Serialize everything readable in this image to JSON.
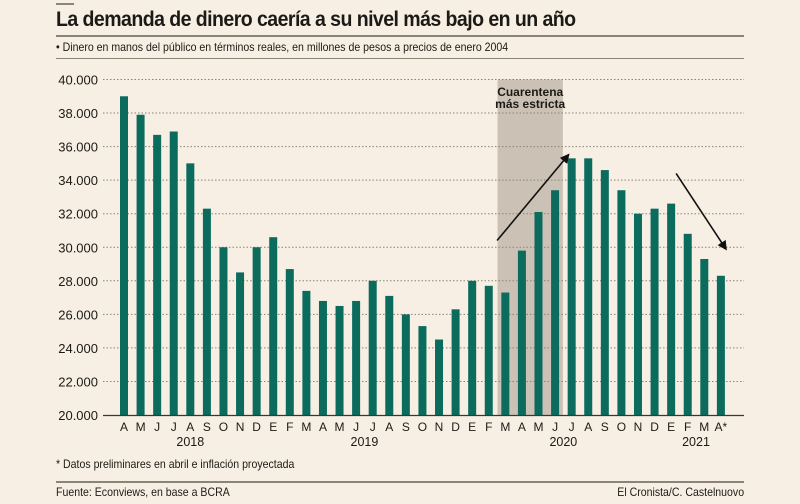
{
  "header": {
    "title": "La demanda de dinero caería a su nivel más bajo en un año",
    "subtitle": "• Dinero en manos del público en términos reales, en millones de pesos a precios de enero 2004"
  },
  "footer": {
    "footnote": "* Datos preliminares en abril e inflación proyectada",
    "source": "Fuente: Econviews, en base a BCRA",
    "credit": "El Cronista/C. Castelnuovo"
  },
  "colors": {
    "bar": "#0b6b5d",
    "shade": "#cbc2b5",
    "background": "#f7efe3",
    "grid": "#8a8377",
    "text": "#1c1a17"
  },
  "chart_data": {
    "type": "bar",
    "title": "La demanda de dinero caería a su nivel más bajo en un año",
    "ylabel": "Millones de pesos a precios de enero 2004",
    "xlabel": "",
    "ylim": [
      20000,
      40000
    ],
    "yticks": [
      20000,
      22000,
      24000,
      26000,
      28000,
      30000,
      32000,
      34000,
      36000,
      38000,
      40000
    ],
    "ytick_labels": [
      "20.000",
      "22.000",
      "24.000",
      "26.000",
      "28.000",
      "30.000",
      "32.000",
      "34.000",
      "36.000",
      "38.000",
      "40.000"
    ],
    "grid": "horizontal-dotted",
    "categories": [
      "A",
      "M",
      "J",
      "J",
      "A",
      "S",
      "O",
      "N",
      "D",
      "E",
      "F",
      "M",
      "A",
      "M",
      "J",
      "J",
      "A",
      "S",
      "O",
      "N",
      "D",
      "E",
      "F",
      "M",
      "A",
      "M",
      "J",
      "J",
      "A",
      "S",
      "O",
      "N",
      "D",
      "E",
      "F",
      "M",
      "A*"
    ],
    "years": [
      {
        "label": "2018",
        "start_index": 0,
        "end_index": 8
      },
      {
        "label": "2019",
        "start_index": 9,
        "end_index": 20
      },
      {
        "label": "2020",
        "start_index": 21,
        "end_index": 32
      },
      {
        "label": "2021",
        "start_index": 33,
        "end_index": 36
      }
    ],
    "values": [
      39000,
      37900,
      36700,
      36900,
      35000,
      32300,
      30000,
      28500,
      30000,
      30600,
      28700,
      27400,
      26800,
      26500,
      26800,
      28000,
      27100,
      26000,
      25300,
      24500,
      26300,
      28000,
      27700,
      27300,
      29800,
      32100,
      33400,
      35300,
      35300,
      34600,
      33400,
      32000,
      32300,
      32600,
      30800,
      29300,
      28300
    ],
    "annotations": [
      {
        "type": "shaded-region",
        "label_line1": "Cuarentena",
        "label_line2": "más estricta",
        "from_index": 23,
        "to_index": 26
      },
      {
        "type": "arrow",
        "direction": "up",
        "from": {
          "index": 22.5,
          "value": 30400
        },
        "to": {
          "index": 26.8,
          "value": 35500
        }
      },
      {
        "type": "arrow",
        "direction": "down",
        "from": {
          "index": 33.3,
          "value": 34400
        },
        "to": {
          "index": 36.3,
          "value": 29900
        }
      }
    ]
  }
}
